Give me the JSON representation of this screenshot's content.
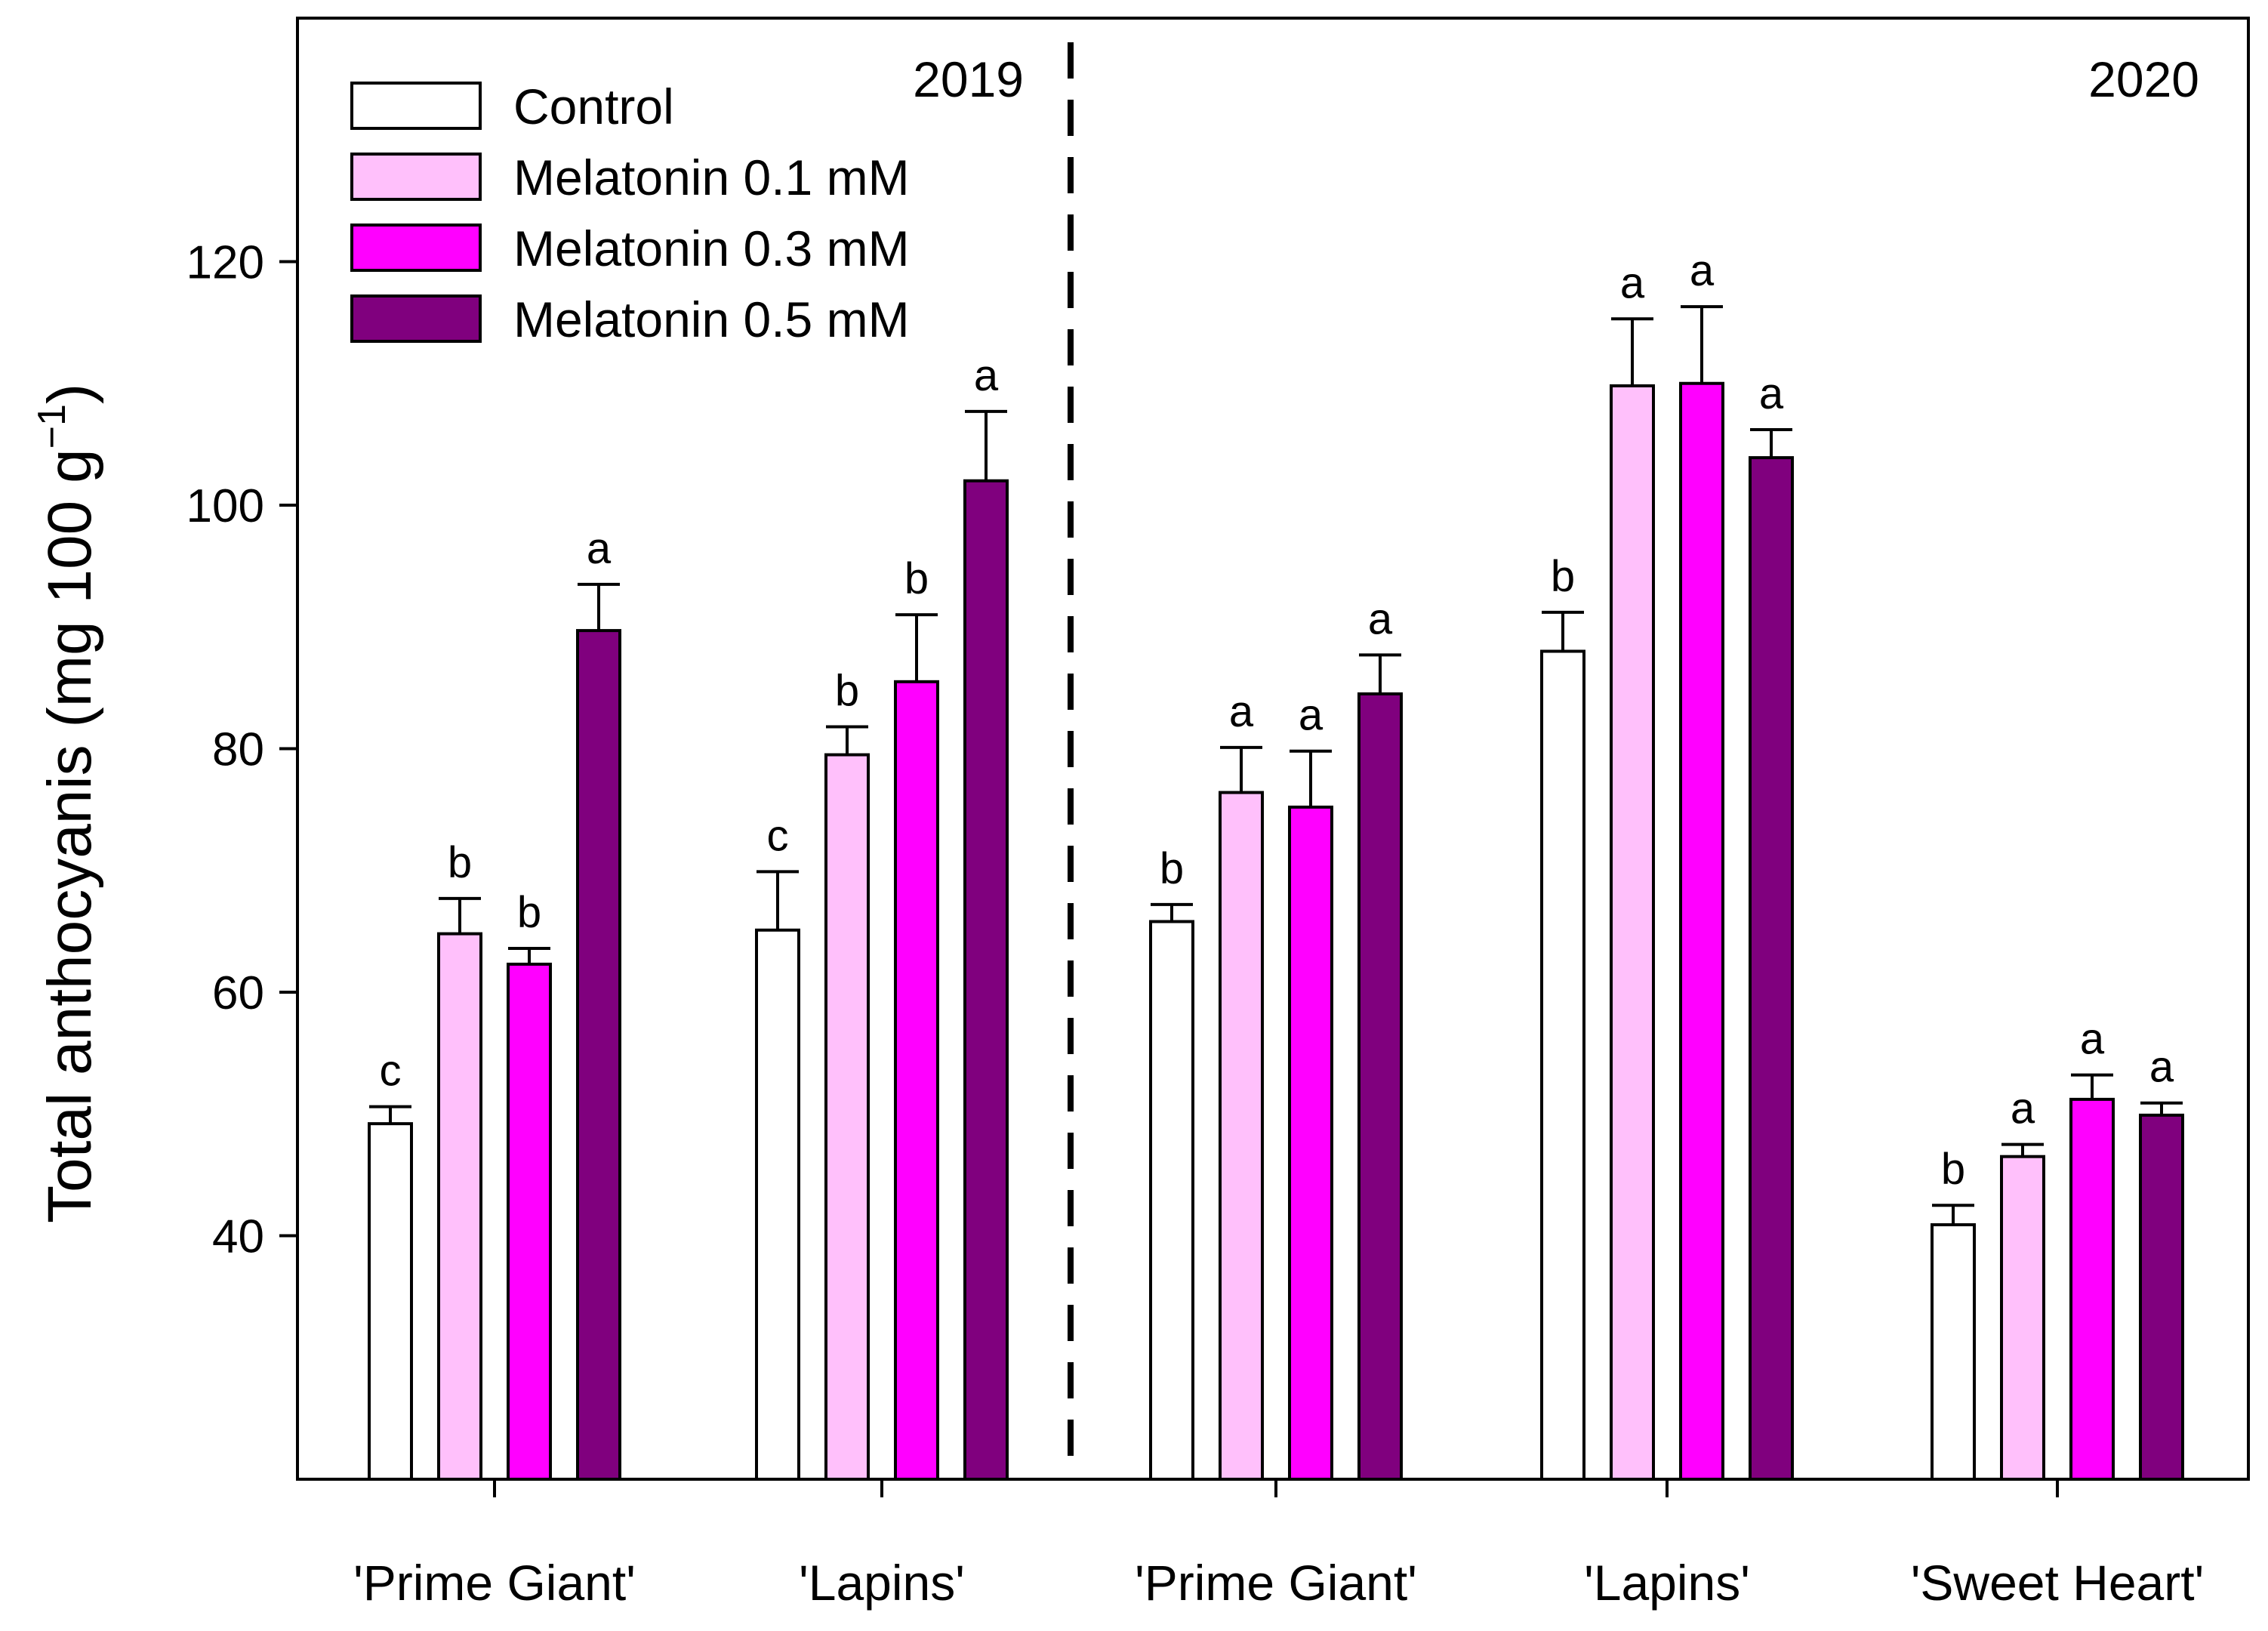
{
  "chart_data": {
    "type": "bar",
    "title": "",
    "xlabel": "",
    "ylabel": "Total anthocyanis (mg 100 g",
    "ylabel_exponent": "−1",
    "ylabel_close": ")",
    "ylim": [
      20,
      140
    ],
    "yticks": [
      40,
      60,
      80,
      100,
      120
    ],
    "groups": [
      {
        "label": "'Prime Giant'",
        "year": "2019"
      },
      {
        "label": "'Lapins'",
        "year": "2019"
      },
      {
        "label": "'Prime Giant'",
        "year": "2020"
      },
      {
        "label": "'Lapins'",
        "year": "2020"
      },
      {
        "label": "'Sweet Heart'",
        "year": "2020"
      }
    ],
    "year_labels": [
      "2019",
      "2020"
    ],
    "series": [
      {
        "name": "Control",
        "color": "#ffffff",
        "values": [
          49.2,
          65.1,
          65.8,
          88.0,
          40.9
        ],
        "errors": [
          1.4,
          4.8,
          1.4,
          3.2,
          1.6
        ],
        "letters": [
          "c",
          "c",
          "b",
          "b",
          "b"
        ]
      },
      {
        "name": "Melatonin 0.1 mM",
        "color": "#ffc0fb",
        "values": [
          64.8,
          79.5,
          76.4,
          109.8,
          46.5
        ],
        "errors": [
          2.9,
          2.3,
          3.7,
          5.5,
          1.0
        ],
        "letters": [
          "b",
          "b",
          "a",
          "a",
          "a"
        ]
      },
      {
        "name": "Melatonin 0.3 mM",
        "color": "#ff00ff",
        "values": [
          62.3,
          85.5,
          75.2,
          110.0,
          51.2
        ],
        "errors": [
          1.3,
          5.5,
          4.6,
          6.3,
          2.0
        ],
        "letters": [
          "b",
          "b",
          "a",
          "a",
          "a"
        ]
      },
      {
        "name": "Melatonin 0.5 mM",
        "color": "#80007e",
        "values": [
          89.7,
          102.0,
          84.5,
          103.9,
          49.9
        ],
        "errors": [
          3.8,
          5.7,
          3.2,
          2.3,
          1.0
        ],
        "letters": [
          "a",
          "a",
          "a",
          "a",
          "a"
        ]
      }
    ],
    "legend_position": "top-left",
    "grid": false
  }
}
